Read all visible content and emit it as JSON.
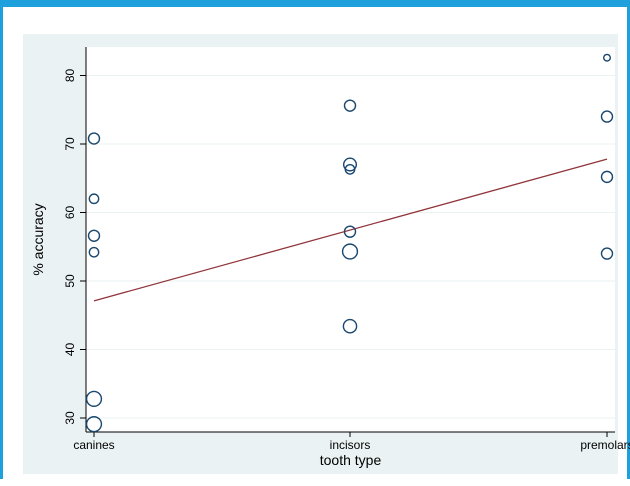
{
  "chart_data": {
    "type": "scatter",
    "title": "",
    "xlabel": "tooth type",
    "ylabel": "% accuracy",
    "categories": [
      "canines",
      "incisors",
      "premolars"
    ],
    "ylim": [
      28,
      84
    ],
    "yticks": [
      30,
      40,
      50,
      60,
      70,
      80
    ],
    "grid": true,
    "legend": "none",
    "points": [
      {
        "x": "canines",
        "y": 70.8,
        "size": 1.0
      },
      {
        "x": "canines",
        "y": 62.0,
        "size": 0.85
      },
      {
        "x": "canines",
        "y": 56.6,
        "size": 1.0
      },
      {
        "x": "canines",
        "y": 54.2,
        "size": 0.85
      },
      {
        "x": "canines",
        "y": 32.8,
        "size": 1.35
      },
      {
        "x": "canines",
        "y": 29.1,
        "size": 1.35
      },
      {
        "x": "incisors",
        "y": 75.6,
        "size": 1.0
      },
      {
        "x": "incisors",
        "y": 67.0,
        "size": 1.15
      },
      {
        "x": "incisors",
        "y": 66.3,
        "size": 0.85
      },
      {
        "x": "incisors",
        "y": 57.2,
        "size": 1.0
      },
      {
        "x": "incisors",
        "y": 54.3,
        "size": 1.35
      },
      {
        "x": "incisors",
        "y": 43.4,
        "size": 1.2
      },
      {
        "x": "premolars",
        "y": 82.6,
        "size": 0.6
      },
      {
        "x": "premolars",
        "y": 74.0,
        "size": 1.0
      },
      {
        "x": "premolars",
        "y": 65.2,
        "size": 1.0
      },
      {
        "x": "premolars",
        "y": 54.0,
        "size": 1.0
      }
    ],
    "fit_line": {
      "x": [
        "canines",
        "premolars"
      ],
      "y": [
        47.1,
        67.8
      ]
    },
    "colors": {
      "frame": "#1ea0dc",
      "outer_bg": "#eaf2f3",
      "plot_bg": "#ffffff",
      "grid": "#eaf2f3",
      "marker": "#1a476f",
      "fit_line": "#90353b",
      "axis": "#000000"
    }
  }
}
